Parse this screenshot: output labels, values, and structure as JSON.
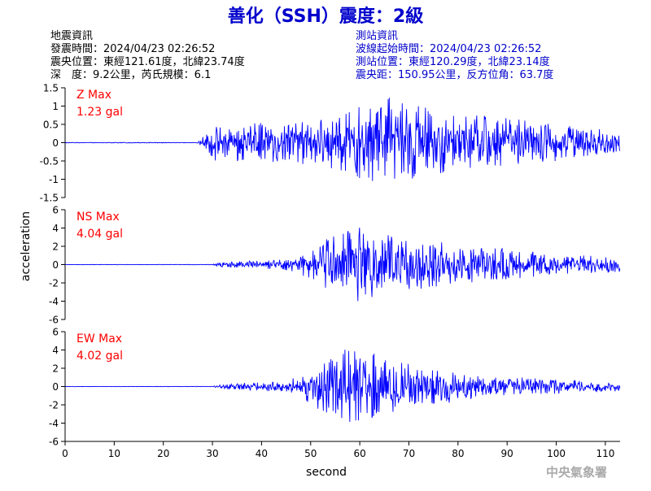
{
  "header": {
    "title": "善化（SSH）震度：2級",
    "left_lines": [
      "地震資訊",
      "發震時間：2024/04/23 02:26:52",
      "震央位置：東經121.61度，北緯23.74度",
      "深　度：9.2公里，芮氏規模：6.1"
    ],
    "right_lines": [
      "測站資訊",
      "波線起始時間：2024/04/23 02:26:52",
      "測站位置：東經120.29度，北緯23.14度",
      "震央距：150.95公里，反方位角：63.7度"
    ]
  },
  "footer": {
    "credit": "中央氣象署"
  },
  "colors": {
    "trace": "#0000ff",
    "label": "#ff0000",
    "title": "#0000cc",
    "info_right": "#0000cc"
  },
  "chart_data": [
    {
      "type": "line",
      "component": "Z",
      "max_label": "Z Max",
      "max_value_label": "1.23 gal",
      "peak": 1.23,
      "ylim": [
        -1.5,
        1.5
      ],
      "yticks": [
        -1.5,
        -1,
        -0.5,
        0,
        0.5,
        1,
        1.5
      ],
      "xlim": [
        0,
        113
      ],
      "envelope": [
        {
          "t": 0,
          "a": 0.01
        },
        {
          "t": 27,
          "a": 0.01
        },
        {
          "t": 28,
          "a": 0.15
        },
        {
          "t": 30,
          "a": 0.5
        },
        {
          "t": 40,
          "a": 0.55
        },
        {
          "t": 50,
          "a": 0.6
        },
        {
          "t": 58,
          "a": 1.0
        },
        {
          "t": 66,
          "a": 1.23
        },
        {
          "t": 75,
          "a": 0.9
        },
        {
          "t": 95,
          "a": 0.6
        },
        {
          "t": 113,
          "a": 0.3
        }
      ]
    },
    {
      "type": "line",
      "component": "NS",
      "max_label": "NS Max",
      "max_value_label": "4.04 gal",
      "peak": 4.04,
      "ylim": [
        -6,
        6
      ],
      "yticks": [
        -6,
        -4,
        -2,
        0,
        2,
        4,
        6
      ],
      "xlim": [
        0,
        113
      ],
      "envelope": [
        {
          "t": 0,
          "a": 0.02
        },
        {
          "t": 30,
          "a": 0.03
        },
        {
          "t": 32,
          "a": 0.3
        },
        {
          "t": 45,
          "a": 0.6
        },
        {
          "t": 50,
          "a": 1.5
        },
        {
          "t": 55,
          "a": 3.5
        },
        {
          "t": 60,
          "a": 4.04
        },
        {
          "t": 70,
          "a": 2.8
        },
        {
          "t": 85,
          "a": 2.0
        },
        {
          "t": 100,
          "a": 1.2
        },
        {
          "t": 113,
          "a": 0.8
        }
      ]
    },
    {
      "type": "line",
      "component": "EW",
      "max_label": "EW Max",
      "max_value_label": "4.02 gal",
      "peak": 4.02,
      "ylim": [
        -6,
        6
      ],
      "yticks": [
        -6,
        -4,
        -2,
        0,
        2,
        4,
        6
      ],
      "xlim": [
        0,
        113
      ],
      "xticks": [
        0,
        10,
        20,
        30,
        40,
        50,
        60,
        70,
        80,
        90,
        100,
        110
      ],
      "xlabel": "second",
      "envelope": [
        {
          "t": 0,
          "a": 0.02
        },
        {
          "t": 30,
          "a": 0.03
        },
        {
          "t": 32,
          "a": 0.3
        },
        {
          "t": 45,
          "a": 0.6
        },
        {
          "t": 50,
          "a": 2.0
        },
        {
          "t": 57,
          "a": 4.02
        },
        {
          "t": 63,
          "a": 3.6
        },
        {
          "t": 70,
          "a": 2.5
        },
        {
          "t": 85,
          "a": 1.2
        },
        {
          "t": 100,
          "a": 0.8
        },
        {
          "t": 113,
          "a": 0.5
        }
      ]
    }
  ],
  "shared": {
    "ylabel": "acceleration"
  }
}
